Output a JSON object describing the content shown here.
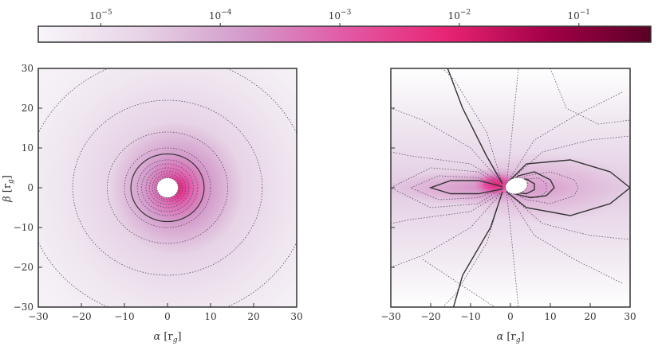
{
  "colorbar": {
    "scale": "log",
    "range": [
      3e-06,
      0.4
    ],
    "tick_values": [
      1e-05,
      0.0001,
      0.001,
      0.01,
      0.1
    ],
    "tick_bases": [
      "10",
      "10",
      "10",
      "10",
      "10"
    ],
    "tick_exponents": [
      "−5",
      "−4",
      "−3",
      "−2",
      "−1"
    ],
    "colormap": [
      "#f8f5fa",
      "#e7d4e6",
      "#d39ccb",
      "#e25aa6",
      "#e82474",
      "#a30047",
      "#5a0025"
    ]
  },
  "chart_data": [
    {
      "type": "heatmap",
      "title": "",
      "xlabel": "α [r_g]",
      "xlabel_main": "α",
      "xlabel_unit": "[r",
      "xlabel_sub": "g",
      "xlabel_close": "]",
      "ylabel": "β [r_g]",
      "ylabel_main": "β",
      "ylabel_unit": "[r",
      "ylabel_sub": "g",
      "ylabel_close": "]",
      "xlim": [
        -30,
        30
      ],
      "ylim": [
        -30,
        30
      ],
      "xticks": [
        -30,
        -20,
        -10,
        0,
        10,
        20,
        30
      ],
      "yticks": [
        -30,
        -20,
        -10,
        0,
        10,
        20,
        30
      ],
      "xtick_labels": [
        "−30",
        "−20",
        "−10",
        "0",
        "10",
        "20",
        "30"
      ],
      "ytick_labels": [
        "−30",
        "−20",
        "−10",
        "0",
        "10",
        "20",
        "30"
      ],
      "shadow_radius": 2.5,
      "dotted_contour_radii": [
        3,
        3.5,
        4.2,
        5,
        6,
        7,
        10,
        14,
        22,
        33
      ],
      "solid_contour_radii": [
        8.5
      ]
    },
    {
      "type": "heatmap",
      "title": "",
      "xlabel": "α [r_g]",
      "xlabel_main": "α",
      "xlabel_unit": "[r",
      "xlabel_sub": "g",
      "xlabel_close": "]",
      "xlim": [
        -30,
        30
      ],
      "ylim": [
        -30,
        30
      ],
      "xticks": [
        -30,
        -20,
        -10,
        0,
        10,
        20,
        30
      ],
      "yticks": [
        -30,
        -20,
        -10,
        0,
        10,
        20,
        30
      ],
      "xtick_labels": [
        "−30",
        "−20",
        "−10",
        "0",
        "10",
        "20",
        "30"
      ],
      "shadow_center": [
        1.5,
        0.5
      ],
      "shadow_radii": [
        2.8,
        2.0
      ],
      "solid_contours": [
        [
          [
            -18,
            36
          ],
          [
            -12,
            20
          ],
          [
            -6,
            8
          ],
          [
            -2,
            1
          ]
        ],
        [
          [
            -2,
            -1
          ],
          [
            -5,
            -10
          ],
          [
            -12,
            -22
          ],
          [
            -16,
            -36
          ]
        ],
        [
          [
            -1,
            1
          ],
          [
            4,
            6
          ],
          [
            15,
            7
          ],
          [
            25,
            4
          ],
          [
            30,
            0
          ],
          [
            25,
            -4
          ],
          [
            15,
            -7
          ],
          [
            4,
            -5
          ],
          [
            -1,
            -1
          ]
        ],
        [
          [
            -1,
            0.5
          ],
          [
            2,
            3
          ],
          [
            6,
            4
          ],
          [
            10,
            2
          ],
          [
            11,
            0
          ],
          [
            9,
            -2
          ],
          [
            5,
            -2.5
          ],
          [
            1,
            -1.5
          ],
          [
            -1,
            -0.5
          ]
        ],
        [
          [
            -1,
            0.3
          ],
          [
            1,
            1.8
          ],
          [
            4,
            2.2
          ],
          [
            6,
            1
          ],
          [
            6,
            -0.5
          ],
          [
            4,
            -1.5
          ],
          [
            1,
            -1.2
          ],
          [
            -1,
            -0.3
          ]
        ],
        [
          [
            -2,
            0.3
          ],
          [
            -8,
            1.8
          ],
          [
            -15,
            1.8
          ],
          [
            -20,
            0
          ],
          [
            -15,
            -1.5
          ],
          [
            -8,
            -1.5
          ],
          [
            -2,
            -0.3
          ]
        ]
      ],
      "dotted_contours": [
        [
          [
            -2,
            0
          ],
          [
            -8,
            2.5
          ],
          [
            -18,
            3
          ],
          [
            -25,
            0
          ],
          [
            -18,
            -3
          ],
          [
            -8,
            -2.5
          ],
          [
            -2,
            0
          ]
        ],
        [
          [
            -2,
            0
          ],
          [
            -8,
            4
          ],
          [
            -20,
            5
          ],
          [
            -30,
            0
          ],
          [
            -20,
            -5
          ],
          [
            -8,
            -4
          ],
          [
            -2,
            0
          ]
        ],
        [
          [
            -2,
            1
          ],
          [
            -10,
            6
          ],
          [
            -25,
            8
          ],
          [
            -30,
            9
          ]
        ],
        [
          [
            -2,
            -1
          ],
          [
            -10,
            -6
          ],
          [
            -25,
            -8
          ],
          [
            -30,
            -9
          ]
        ],
        [
          [
            -2,
            1
          ],
          [
            -10,
            10
          ],
          [
            -22,
            17
          ],
          [
            -30,
            20
          ]
        ],
        [
          [
            -2,
            -1
          ],
          [
            -10,
            -10
          ],
          [
            -22,
            -17
          ],
          [
            -30,
            -20
          ]
        ],
        [
          [
            -2,
            1
          ],
          [
            -6,
            14
          ],
          [
            -14,
            27
          ],
          [
            -17,
            30
          ]
        ],
        [
          [
            -2,
            -1
          ],
          [
            -6,
            -14
          ],
          [
            -14,
            -27
          ],
          [
            -17,
            -30
          ]
        ],
        [
          [
            -1,
            1
          ],
          [
            0,
            10
          ],
          [
            1,
            20
          ],
          [
            2,
            30
          ]
        ],
        [
          [
            -1,
            -1
          ],
          [
            0,
            -10
          ],
          [
            1,
            -20
          ],
          [
            2,
            -30
          ]
        ],
        [
          [
            -1,
            1
          ],
          [
            6,
            12
          ],
          [
            16,
            18
          ],
          [
            28,
            24
          ]
        ],
        [
          [
            -1,
            -1
          ],
          [
            6,
            -12
          ],
          [
            16,
            -18
          ],
          [
            28,
            -24
          ]
        ],
        [
          [
            -1,
            1
          ],
          [
            8,
            9
          ],
          [
            20,
            12
          ],
          [
            30,
            13
          ]
        ],
        [
          [
            -1,
            -1
          ],
          [
            8,
            -9
          ],
          [
            20,
            -12
          ],
          [
            30,
            -13
          ]
        ],
        [
          [
            -1,
            0.5
          ],
          [
            4,
            3
          ],
          [
            10,
            4
          ],
          [
            16,
            2
          ],
          [
            17,
            0
          ],
          [
            16,
            -2
          ],
          [
            10,
            -4
          ],
          [
            4,
            -3
          ],
          [
            -1,
            -0.5
          ]
        ],
        [
          [
            -1,
            0.5
          ],
          [
            3,
            2
          ],
          [
            7,
            2.5
          ],
          [
            9,
            1
          ],
          [
            9,
            -1
          ],
          [
            7,
            -2.5
          ],
          [
            3,
            -2
          ],
          [
            -1,
            -0.5
          ]
        ],
        [
          [
            10,
            30
          ],
          [
            14,
            20
          ],
          [
            22,
            16
          ],
          [
            30,
            17
          ]
        ],
        [
          [
            -22,
            -18
          ],
          [
            -10,
            -26
          ],
          [
            -4,
            -30
          ]
        ]
      ]
    }
  ]
}
